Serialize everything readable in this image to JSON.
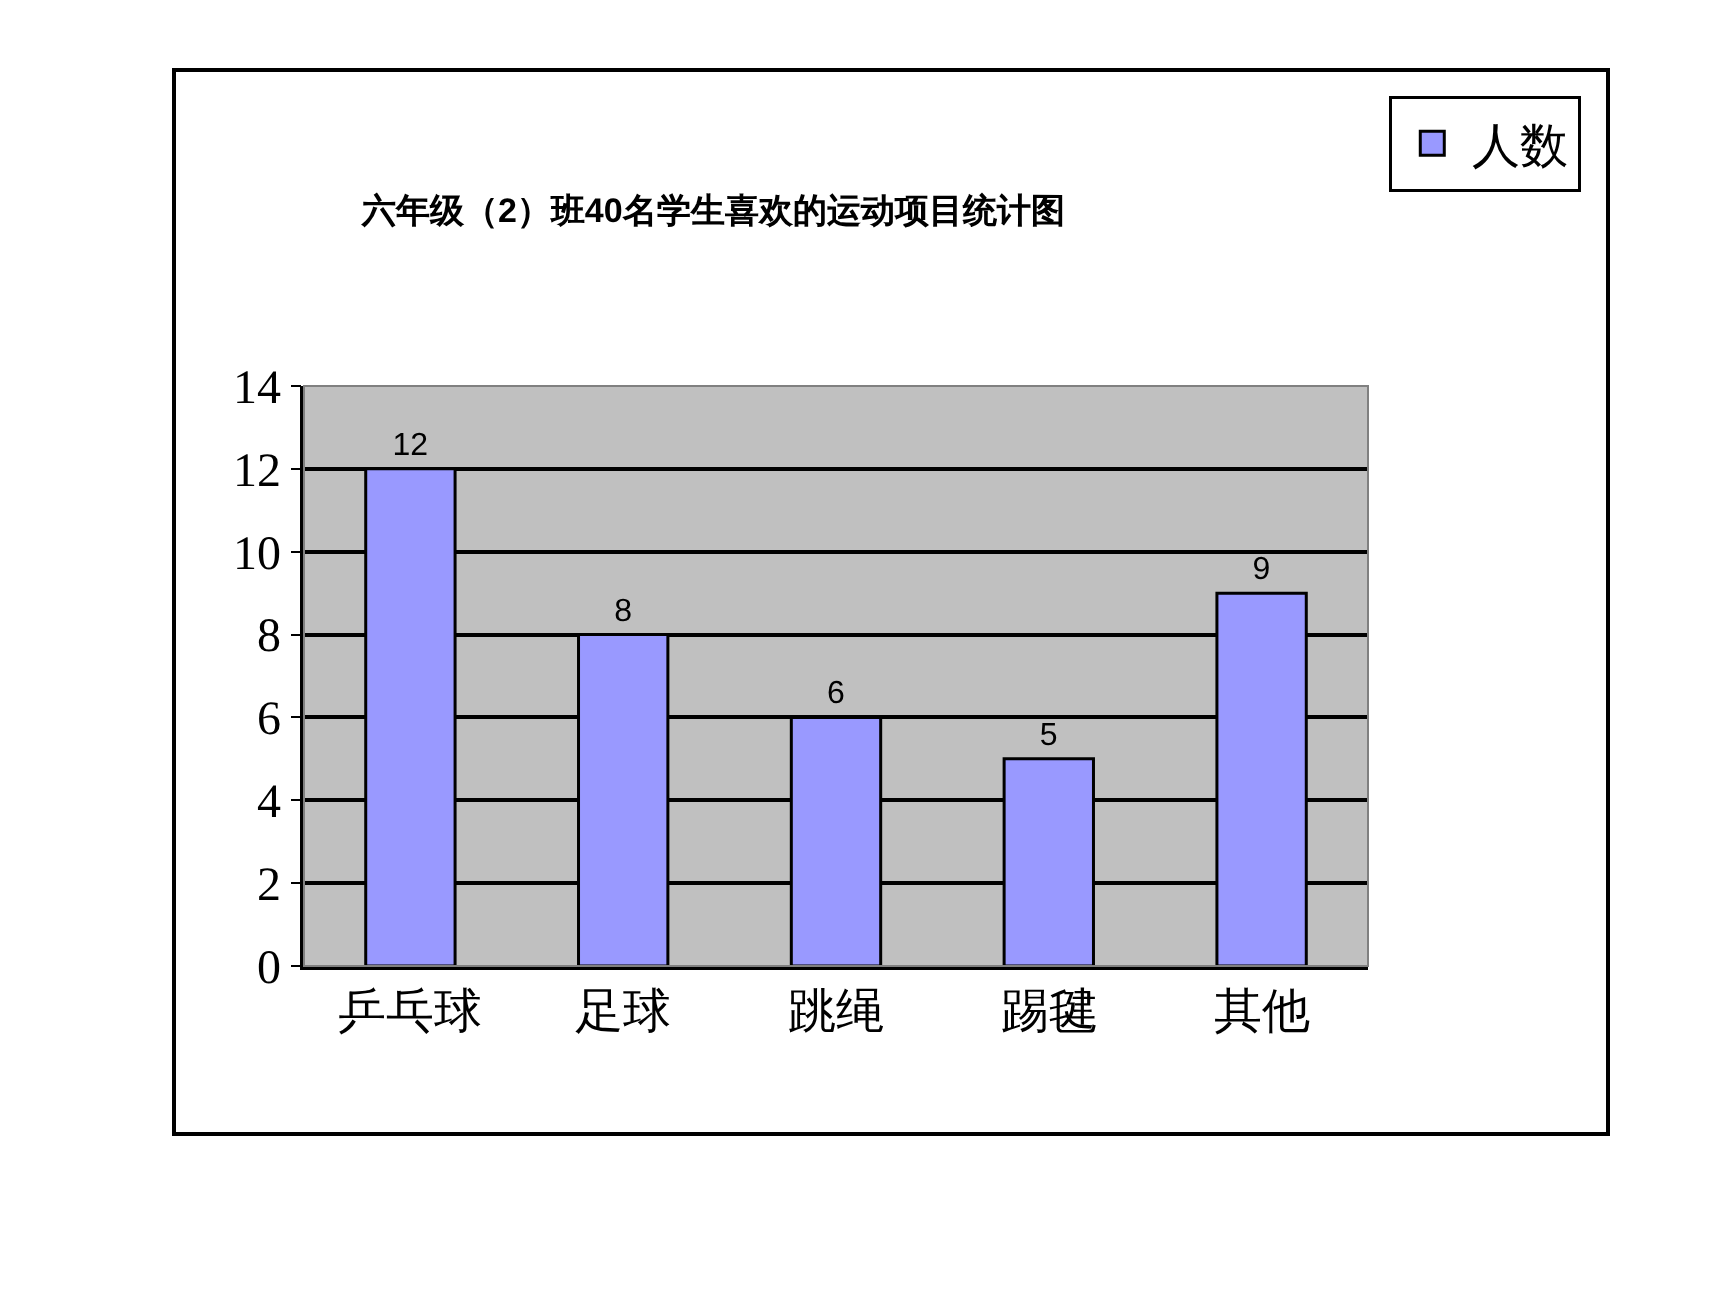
{
  "chart_data": {
    "type": "bar",
    "title": "六年级（2）班40名学生喜欢的运动项目统计图",
    "categories": [
      "乒乓球",
      "足球",
      "跳绳",
      "踢毽",
      "其他"
    ],
    "series": [
      {
        "name": "人数",
        "color": "#9999ff",
        "values": [
          12,
          8,
          6,
          5,
          9
        ]
      }
    ],
    "ylim": [
      0,
      14
    ],
    "yticks": [
      0,
      2,
      4,
      6,
      8,
      10,
      12,
      14
    ],
    "grid": "y",
    "legend": "right",
    "data_labels": true
  }
}
